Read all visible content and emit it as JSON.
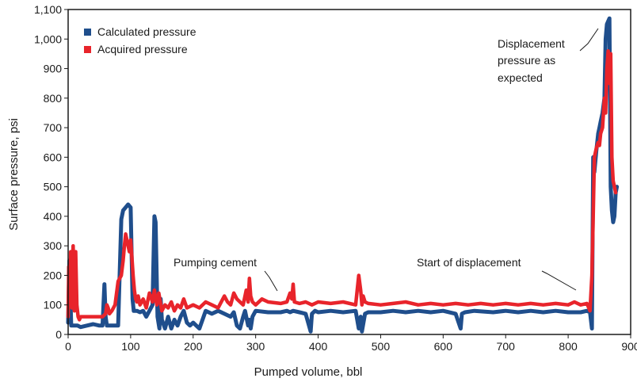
{
  "chart_data": {
    "type": "line",
    "xlabel": "Pumped volume, bbl",
    "ylabel": "Surface pressure, psi",
    "xlim": [
      0,
      900
    ],
    "ylim": [
      0,
      1100
    ],
    "x_ticks": [
      0,
      100,
      200,
      300,
      400,
      500,
      600,
      700,
      800,
      900
    ],
    "x_tick_labels": [
      "0",
      "100",
      "200",
      "300",
      "400",
      "500",
      "600",
      "700",
      "800",
      "900"
    ],
    "y_ticks": [
      0,
      100,
      200,
      300,
      400,
      500,
      600,
      700,
      800,
      900,
      1000,
      1100
    ],
    "y_tick_labels": [
      "0",
      "100",
      "200",
      "300",
      "400",
      "500",
      "600",
      "700",
      "800",
      "900",
      "1,000",
      "1,100"
    ],
    "grid": false,
    "legend_position": "top-left",
    "series": [
      {
        "name": "Calculated pressure",
        "color": "#1f4e8c",
        "x": [
          0,
          2,
          5,
          10,
          15,
          20,
          30,
          40,
          50,
          55,
          58,
          60,
          62,
          64,
          66,
          70,
          75,
          80,
          85,
          88,
          92,
          96,
          100,
          103,
          105,
          108,
          110,
          115,
          120,
          125,
          130,
          135,
          138,
          140,
          143,
          146,
          148,
          150,
          155,
          160,
          165,
          170,
          175,
          180,
          185,
          190,
          195,
          200,
          205,
          210,
          220,
          230,
          240,
          250,
          260,
          265,
          270,
          275,
          280,
          283,
          285,
          288,
          290,
          292,
          295,
          300,
          320,
          340,
          350,
          355,
          360,
          370,
          380,
          388,
          390,
          395,
          400,
          420,
          440,
          460,
          465,
          468,
          470,
          475,
          480,
          500,
          520,
          540,
          560,
          580,
          600,
          620,
          628,
          630,
          635,
          650,
          680,
          700,
          720,
          740,
          760,
          780,
          800,
          820,
          830,
          835,
          838,
          840,
          842,
          845,
          848,
          850,
          852,
          855,
          858,
          860,
          862,
          864,
          866,
          868,
          870,
          872,
          874,
          876,
          878
        ],
        "values": [
          40,
          250,
          30,
          30,
          30,
          25,
          30,
          35,
          30,
          30,
          170,
          60,
          30,
          30,
          30,
          30,
          30,
          30,
          390,
          420,
          430,
          440,
          430,
          120,
          80,
          80,
          80,
          75,
          80,
          60,
          80,
          100,
          400,
          380,
          60,
          20,
          120,
          50,
          20,
          60,
          20,
          50,
          30,
          60,
          80,
          40,
          30,
          40,
          30,
          20,
          80,
          70,
          80,
          70,
          60,
          75,
          30,
          20,
          60,
          80,
          60,
          30,
          50,
          20,
          60,
          80,
          75,
          75,
          80,
          75,
          80,
          75,
          70,
          10,
          70,
          80,
          75,
          80,
          75,
          80,
          20,
          60,
          10,
          70,
          75,
          75,
          80,
          75,
          80,
          75,
          80,
          70,
          20,
          70,
          75,
          80,
          75,
          80,
          75,
          80,
          75,
          80,
          75,
          75,
          80,
          75,
          20,
          600,
          550,
          620,
          680,
          700,
          720,
          750,
          800,
          1000,
          1050,
          1060,
          1070,
          500,
          420,
          380,
          400,
          480,
          500
        ]
      },
      {
        "name": "Acquired pressure",
        "color": "#e8242b",
        "x": [
          0,
          1,
          2,
          3,
          4,
          6,
          8,
          10,
          12,
          14,
          16,
          18,
          20,
          25,
          30,
          40,
          50,
          55,
          60,
          62,
          64,
          66,
          70,
          75,
          80,
          85,
          88,
          90,
          92,
          95,
          98,
          100,
          102,
          104,
          106,
          108,
          110,
          112,
          115,
          120,
          125,
          130,
          135,
          138,
          140,
          142,
          145,
          150,
          155,
          160,
          165,
          170,
          175,
          180,
          185,
          190,
          200,
          210,
          220,
          230,
          240,
          250,
          255,
          260,
          265,
          270,
          275,
          280,
          285,
          288,
          290,
          292,
          295,
          300,
          310,
          320,
          340,
          350,
          355,
          358,
          360,
          362,
          370,
          380,
          390,
          400,
          420,
          440,
          460,
          465,
          468,
          470,
          472,
          475,
          480,
          500,
          520,
          540,
          560,
          580,
          600,
          620,
          640,
          660,
          680,
          700,
          720,
          740,
          760,
          780,
          800,
          810,
          820,
          830,
          835,
          838,
          840,
          842,
          845,
          848,
          850,
          852,
          855,
          858,
          860,
          862,
          864,
          866,
          868,
          870,
          872,
          874,
          876
        ],
        "values": [
          60,
          230,
          100,
          150,
          280,
          90,
          300,
          80,
          280,
          100,
          60,
          50,
          60,
          60,
          60,
          60,
          60,
          60,
          70,
          100,
          90,
          70,
          80,
          100,
          180,
          200,
          250,
          300,
          340,
          310,
          280,
          320,
          260,
          200,
          150,
          120,
          110,
          130,
          100,
          120,
          90,
          140,
          110,
          150,
          120,
          100,
          140,
          80,
          100,
          90,
          110,
          80,
          100,
          90,
          120,
          90,
          100,
          90,
          110,
          100,
          90,
          130,
          110,
          100,
          140,
          120,
          110,
          100,
          150,
          110,
          190,
          130,
          110,
          100,
          120,
          110,
          105,
          110,
          140,
          120,
          170,
          110,
          105,
          110,
          100,
          110,
          105,
          110,
          100,
          200,
          150,
          100,
          130,
          110,
          105,
          100,
          105,
          110,
          100,
          105,
          100,
          105,
          100,
          105,
          100,
          105,
          100,
          105,
          100,
          105,
          100,
          110,
          100,
          105,
          80,
          200,
          400,
          600,
          630,
          650,
          640,
          680,
          700,
          800,
          750,
          900,
          960,
          850,
          950,
          600,
          520,
          500,
          480
        ]
      }
    ],
    "annotations": [
      {
        "text": "Pumping cement",
        "x": 340,
        "y": 100
      },
      {
        "text": "Start  of displacement",
        "x": 825,
        "y": 90
      },
      {
        "lines": [
          "Displacement",
          "pressure as",
          "expected"
        ],
        "x": 845,
        "y": 1060
      }
    ]
  }
}
